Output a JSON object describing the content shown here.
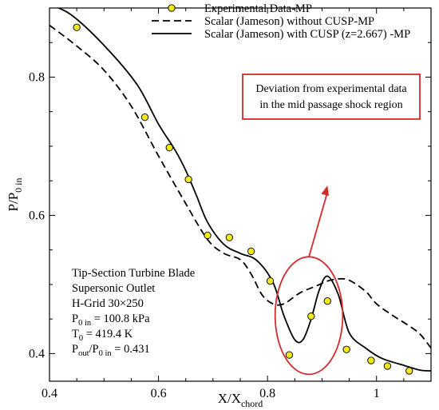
{
  "chart_data": {
    "type": "line",
    "xlabel": "X/X",
    "xlabel_sub": "chord",
    "ylabel": "P/P",
    "ylabel_sub": "0 in",
    "xlim": [
      0.4,
      1.1
    ],
    "ylim": [
      0.36,
      0.9
    ],
    "x_ticks": [
      0.4,
      0.6,
      0.8,
      1.0
    ],
    "x_tick_labels": [
      "0.4",
      "0.6",
      "0.8",
      "1"
    ],
    "y_ticks": [
      0.4,
      0.6,
      0.8
    ],
    "y_tick_labels": [
      "0.4",
      "0.6",
      "0.8"
    ],
    "grid": false,
    "legend_position": "top-right",
    "colors": {
      "marker_fill": "#f0e81a",
      "marker_stroke": "#000000",
      "line": "#000000",
      "annotation": "#d42a2a"
    },
    "series": [
      {
        "name": "Experimental Data-MP",
        "style": "markers",
        "points": [
          [
            0.45,
            0.872
          ],
          [
            0.575,
            0.742
          ],
          [
            0.62,
            0.698
          ],
          [
            0.655,
            0.652
          ],
          [
            0.69,
            0.571
          ],
          [
            0.73,
            0.568
          ],
          [
            0.77,
            0.548
          ],
          [
            0.805,
            0.505
          ],
          [
            0.84,
            0.398
          ],
          [
            0.88,
            0.454
          ],
          [
            0.91,
            0.476
          ],
          [
            0.945,
            0.406
          ],
          [
            0.99,
            0.39
          ],
          [
            1.02,
            0.382
          ],
          [
            1.06,
            0.375
          ]
        ]
      },
      {
        "name": "Scalar (Jameson) without CUSP-MP",
        "style": "dashed",
        "points": [
          [
            0.4,
            0.875
          ],
          [
            0.45,
            0.845
          ],
          [
            0.5,
            0.81
          ],
          [
            0.55,
            0.758
          ],
          [
            0.6,
            0.686
          ],
          [
            0.65,
            0.617
          ],
          [
            0.69,
            0.565
          ],
          [
            0.72,
            0.545
          ],
          [
            0.75,
            0.536
          ],
          [
            0.77,
            0.515
          ],
          [
            0.79,
            0.485
          ],
          [
            0.81,
            0.472
          ],
          [
            0.83,
            0.472
          ],
          [
            0.86,
            0.488
          ],
          [
            0.89,
            0.498
          ],
          [
            0.91,
            0.505
          ],
          [
            0.93,
            0.508
          ],
          [
            0.95,
            0.506
          ],
          [
            0.98,
            0.49
          ],
          [
            1.0,
            0.472
          ],
          [
            1.03,
            0.455
          ],
          [
            1.06,
            0.44
          ],
          [
            1.08,
            0.428
          ],
          [
            1.1,
            0.408
          ]
        ]
      },
      {
        "name": "Scalar (Jameson) with CUSP (z=2.667) -MP",
        "style": "solid",
        "points": [
          [
            0.4,
            0.905
          ],
          [
            0.44,
            0.89
          ],
          [
            0.5,
            0.846
          ],
          [
            0.56,
            0.79
          ],
          [
            0.6,
            0.732
          ],
          [
            0.63,
            0.695
          ],
          [
            0.65,
            0.665
          ],
          [
            0.67,
            0.628
          ],
          [
            0.69,
            0.59
          ],
          [
            0.72,
            0.558
          ],
          [
            0.75,
            0.545
          ],
          [
            0.78,
            0.535
          ],
          [
            0.81,
            0.503
          ],
          [
            0.83,
            0.455
          ],
          [
            0.85,
            0.42
          ],
          [
            0.865,
            0.42
          ],
          [
            0.88,
            0.45
          ],
          [
            0.895,
            0.492
          ],
          [
            0.91,
            0.512
          ],
          [
            0.93,
            0.485
          ],
          [
            0.95,
            0.43
          ],
          [
            0.98,
            0.408
          ],
          [
            1.01,
            0.393
          ],
          [
            1.05,
            0.383
          ],
          [
            1.08,
            0.376
          ],
          [
            1.1,
            0.375
          ]
        ]
      }
    ],
    "annotation": {
      "text_line1": "Deviation from experimental data",
      "text_line2": "in the mid passage shock region",
      "ellipse_center": [
        0.876,
        0.455
      ],
      "ellipse_radius": [
        0.062,
        0.085
      ],
      "arrow_from": [
        0.876,
        0.54
      ],
      "arrow_to": [
        0.91,
        0.643
      ]
    },
    "info_box": {
      "line1": "Tip-Section Turbine Blade",
      "line2": "Supersonic Outlet",
      "line3": "H-Grid 30×250",
      "line4_main": "P",
      "line4_sub": "0 in",
      "line4_rest": " = 100.8 kPa",
      "line5_main": "T",
      "line5_sub": "0",
      "line5_rest": " = 419.4 K",
      "line6_main1": "P",
      "line6_sub1": "out",
      "line6_mid": "/P",
      "line6_sub2": "0 in",
      "line6_rest": " = 0.431"
    }
  }
}
